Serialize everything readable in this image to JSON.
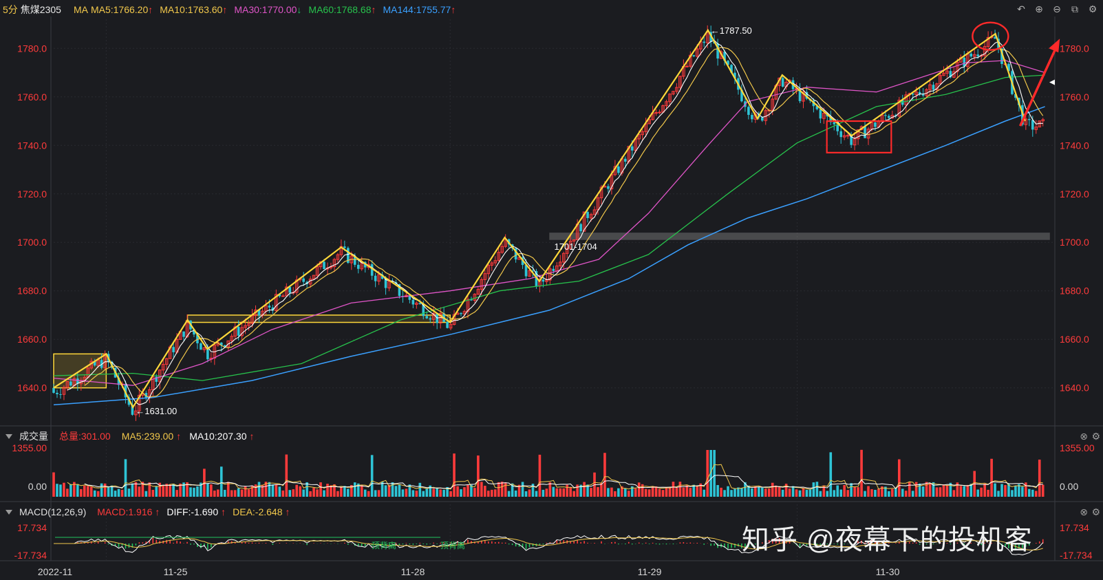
{
  "header": {
    "period": "5分",
    "symbol": "焦煤2305",
    "ma_label": "MA",
    "ma_items": [
      {
        "text": "MA5:1766.20",
        "arrow": "↑",
        "color": "#f2c84b",
        "arrow_color": "#ff3b3b"
      },
      {
        "text": "MA10:1763.60",
        "arrow": "↑",
        "color": "#f2c84b",
        "arrow_color": "#ff3b3b"
      },
      {
        "text": "MA30:1770.00",
        "arrow": "↓",
        "color": "#e055c8",
        "arrow_color": "#22c55e"
      },
      {
        "text": "MA60:1768.68",
        "arrow": "↑",
        "color": "#27c24c",
        "arrow_color": "#ff3b3b"
      },
      {
        "text": "MA144:1755.77",
        "arrow": "↑",
        "color": "#3aa0ff",
        "arrow_color": "#ff3b3b"
      }
    ]
  },
  "toolbar": [
    "↶",
    "⊕",
    "⊖",
    "⧉",
    "⚙"
  ],
  "volume_panel": {
    "title": "成交量",
    "total": "总量:301.00",
    "ma5": "MA5:239.00",
    "ma5_arrow": "↑",
    "ma10": "MA10:207.30",
    "ma10_arrow": "↑",
    "ticks": [
      "1355.00",
      "0.00"
    ]
  },
  "macd_panel": {
    "title": "MACD(12,26,9)",
    "macd": "MACD:1.916",
    "macd_arrow": "↑",
    "diff": "DIFF:-1.690",
    "diff_arrow": "↑",
    "dea": "DEA:-2.648",
    "dea_arrow": "↑",
    "ticks": [
      "17.734",
      "-17.734"
    ],
    "divergence_labels": [
      "顶背离",
      "顶背离"
    ]
  },
  "watermark": "知乎 @夜幕下的投机客",
  "colors": {
    "up": "#ff3b3b",
    "down": "#2ec4d6",
    "annotation": "#ffd83a",
    "ma5": "#ffffff",
    "ma10": "#f2c84b",
    "ma30": "#e055c8",
    "ma60": "#27c24c",
    "ma144": "#3aa0ff",
    "axis_text": "#ff3b3b",
    "grid": "#2a2b31"
  },
  "chart_data": {
    "type": "candlestick",
    "y_range": [
      1628,
      1792
    ],
    "y_ticks": [
      "1640.0",
      "1660.0",
      "1680.0",
      "1700.0",
      "1720.0",
      "1740.0",
      "1760.0",
      "1780.0"
    ],
    "x_labels": [
      "2022-11",
      "11-25",
      "11-28",
      "11-29",
      "11-30"
    ],
    "price_labels": [
      "1787.50",
      "1631.00",
      "1701-1704"
    ],
    "zigzag": [
      {
        "d": 0.0,
        "v": 1640
      },
      {
        "d": 0.53,
        "v": 1654
      },
      {
        "d": 0.8,
        "v": 1632
      },
      {
        "d": 1.35,
        "v": 1668
      },
      {
        "d": 1.55,
        "v": 1656
      },
      {
        "d": 2.9,
        "v": 1698
      },
      {
        "d": 4.0,
        "v": 1667
      },
      {
        "d": 4.55,
        "v": 1702
      },
      {
        "d": 4.9,
        "v": 1684
      },
      {
        "d": 6.6,
        "v": 1787.5
      },
      {
        "d": 7.1,
        "v": 1751
      },
      {
        "d": 7.35,
        "v": 1769
      },
      {
        "d": 8.05,
        "v": 1744
      },
      {
        "d": 9.5,
        "v": 1786
      },
      {
        "d": 9.8,
        "v": 1750
      }
    ],
    "ma144": [
      {
        "d": 0.0,
        "v": 1633
      },
      {
        "d": 1.0,
        "v": 1636
      },
      {
        "d": 2.0,
        "v": 1643
      },
      {
        "d": 3.0,
        "v": 1653
      },
      {
        "d": 4.0,
        "v": 1662
      },
      {
        "d": 5.0,
        "v": 1672
      },
      {
        "d": 5.8,
        "v": 1685
      },
      {
        "d": 6.4,
        "v": 1699
      },
      {
        "d": 7.0,
        "v": 1710
      },
      {
        "d": 7.6,
        "v": 1718
      },
      {
        "d": 8.3,
        "v": 1729
      },
      {
        "d": 9.0,
        "v": 1740
      },
      {
        "d": 9.6,
        "v": 1750
      },
      {
        "d": 10.0,
        "v": 1756
      }
    ],
    "ma60": [
      {
        "d": 0.0,
        "v": 1645
      },
      {
        "d": 0.8,
        "v": 1646
      },
      {
        "d": 1.5,
        "v": 1643
      },
      {
        "d": 2.5,
        "v": 1650
      },
      {
        "d": 3.5,
        "v": 1668
      },
      {
        "d": 4.5,
        "v": 1680
      },
      {
        "d": 5.3,
        "v": 1684
      },
      {
        "d": 6.0,
        "v": 1695
      },
      {
        "d": 6.8,
        "v": 1720
      },
      {
        "d": 7.5,
        "v": 1741
      },
      {
        "d": 8.3,
        "v": 1756
      },
      {
        "d": 9.0,
        "v": 1761
      },
      {
        "d": 9.6,
        "v": 1768
      },
      {
        "d": 10.0,
        "v": 1769
      }
    ],
    "ma30": [
      {
        "d": 0.0,
        "v": 1644
      },
      {
        "d": 0.8,
        "v": 1641
      },
      {
        "d": 1.5,
        "v": 1650
      },
      {
        "d": 2.2,
        "v": 1664
      },
      {
        "d": 3.0,
        "v": 1675
      },
      {
        "d": 4.0,
        "v": 1680
      },
      {
        "d": 4.8,
        "v": 1685
      },
      {
        "d": 5.5,
        "v": 1693
      },
      {
        "d": 6.0,
        "v": 1712
      },
      {
        "d": 6.6,
        "v": 1740
      },
      {
        "d": 7.0,
        "v": 1758
      },
      {
        "d": 7.6,
        "v": 1764
      },
      {
        "d": 8.3,
        "v": 1762
      },
      {
        "d": 9.2,
        "v": 1774
      },
      {
        "d": 9.6,
        "v": 1775
      },
      {
        "d": 10.0,
        "v": 1770
      }
    ],
    "annotations": {
      "box1": {
        "d": [
          0.0,
          0.53
        ],
        "v": [
          1640,
          1654
        ]
      },
      "box2": {
        "d": [
          1.35,
          4.0
        ],
        "v": [
          1667,
          1670
        ]
      },
      "resistance_band": {
        "d": [
          5.0,
          10.05
        ],
        "v": [
          1701,
          1704
        ]
      },
      "red_box": {
        "d": [
          7.8,
          8.45
        ],
        "v": [
          1737,
          1750
        ]
      },
      "red_circle": {
        "d": 9.45,
        "v": 1785
      },
      "red_arrow": {
        "from": {
          "d": 9.75,
          "v": 1748
        },
        "to": {
          "d": 10.15,
          "v": 1784
        }
      }
    }
  }
}
